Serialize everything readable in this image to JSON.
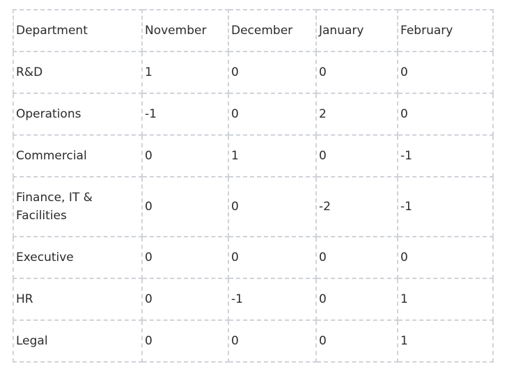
{
  "table": {
    "headers": [
      "Department",
      "November",
      "December",
      "January",
      "February"
    ],
    "rows": [
      {
        "department": "R&D",
        "values": [
          "1",
          "0",
          "0",
          "0"
        ]
      },
      {
        "department": "Operations",
        "values": [
          "-1",
          "0",
          "2",
          "0"
        ]
      },
      {
        "department": "Commercial",
        "values": [
          "0",
          "1",
          "0",
          "-1"
        ]
      },
      {
        "department": "Finance, IT & Facilities",
        "values": [
          "0",
          "0",
          "-2",
          "-1"
        ]
      },
      {
        "department": "Executive",
        "values": [
          "0",
          "0",
          "0",
          "0"
        ]
      },
      {
        "department": "HR",
        "values": [
          "0",
          "-1",
          "0",
          "1"
        ]
      },
      {
        "department": "Legal",
        "values": [
          "0",
          "0",
          "0",
          "1"
        ]
      }
    ]
  }
}
